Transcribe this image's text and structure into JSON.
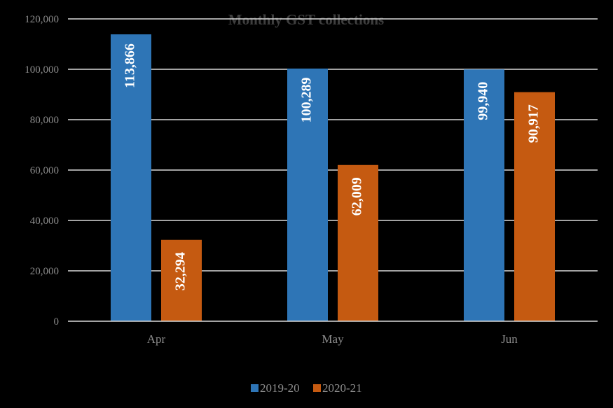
{
  "chart_data": {
    "type": "bar",
    "title": "Monthly GST collections",
    "categories": [
      "Apr",
      "May",
      "Jun"
    ],
    "series": [
      {
        "name": "2019-20",
        "color": "#2e75b6",
        "values": [
          113866,
          100289,
          99940
        ],
        "labels": [
          "113,866",
          "100,289",
          "99,940"
        ]
      },
      {
        "name": "2020-21",
        "color": "#c55a11",
        "values": [
          32294,
          62009,
          90917
        ],
        "labels": [
          "32,294",
          "62,009",
          "90,917"
        ]
      }
    ],
    "yticks": [
      "0",
      "20,000",
      "40,000",
      "60,000",
      "80,000",
      "100,000",
      "120,000"
    ],
    "ylim": [
      0,
      120000
    ],
    "ystep": 20000,
    "grid": true,
    "legend_position": "bottom"
  }
}
